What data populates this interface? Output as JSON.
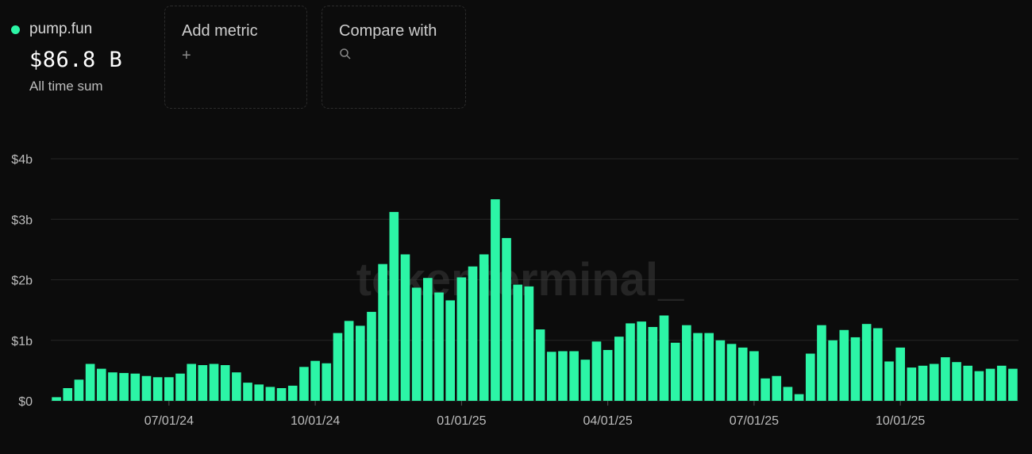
{
  "summary": {
    "project": "pump.fun",
    "total": "$86.8 B",
    "caption": "All time sum",
    "dot_color": "#2cf5a6"
  },
  "controls": {
    "add_metric": {
      "label": "Add metric",
      "icon": "+"
    },
    "compare": {
      "label": "Compare with",
      "icon": "search-icon"
    }
  },
  "watermark": "tokenterminal_",
  "chart_data": {
    "type": "bar",
    "bar_color": "#2cf5a6",
    "y_unit": "billion USD",
    "ylim": [
      0,
      4
    ],
    "y_ticks": [
      {
        "v": 0,
        "label": "$0"
      },
      {
        "v": 1,
        "label": "$1b"
      },
      {
        "v": 2,
        "label": "$2b"
      },
      {
        "v": 3,
        "label": "$3b"
      },
      {
        "v": 4,
        "label": "$4b"
      }
    ],
    "x_ticks": [
      {
        "index": 10,
        "label": "07/01/24"
      },
      {
        "index": 23,
        "label": "10/01/24"
      },
      {
        "index": 36,
        "label": "01/01/25"
      },
      {
        "index": 49,
        "label": "04/01/25"
      },
      {
        "index": 62,
        "label": "07/01/25"
      },
      {
        "index": 75,
        "label": "10/01/25"
      }
    ],
    "values": [
      0.06,
      0.21,
      0.35,
      0.61,
      0.53,
      0.47,
      0.46,
      0.45,
      0.41,
      0.39,
      0.39,
      0.45,
      0.61,
      0.59,
      0.61,
      0.59,
      0.47,
      0.3,
      0.27,
      0.23,
      0.21,
      0.25,
      0.56,
      0.66,
      0.62,
      1.12,
      1.32,
      1.24,
      1.47,
      2.26,
      3.12,
      2.42,
      1.87,
      2.03,
      1.79,
      1.66,
      2.04,
      2.22,
      2.42,
      3.33,
      2.69,
      1.92,
      1.89,
      1.18,
      0.81,
      0.82,
      0.82,
      0.68,
      0.98,
      0.84,
      1.06,
      1.28,
      1.31,
      1.22,
      1.41,
      0.96,
      1.25,
      1.12,
      1.12,
      1.0,
      0.94,
      0.88,
      0.82,
      0.37,
      0.41,
      0.23,
      0.11,
      0.78,
      1.25,
      1.0,
      1.17,
      1.05,
      1.27,
      1.2,
      0.65,
      0.88,
      0.55,
      0.58,
      0.61,
      0.72,
      0.64,
      0.58,
      0.49,
      0.53,
      0.58,
      0.53
    ]
  }
}
